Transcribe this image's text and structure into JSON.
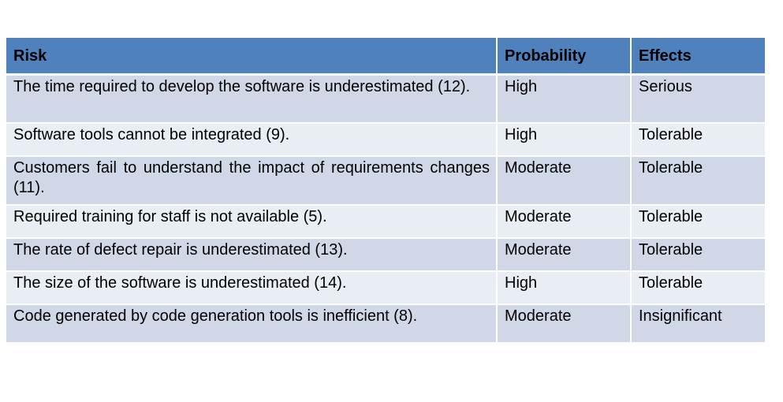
{
  "table": {
    "headers": {
      "risk": "Risk",
      "probability": "Probability",
      "effects": "Effects"
    },
    "rows": [
      {
        "risk": "The time required to develop the software is underestimated (12).",
        "probability": "High",
        "effects": "Serious"
      },
      {
        "risk": "Software tools cannot be integrated (9).",
        "probability": "High",
        "effects": "Tolerable"
      },
      {
        "risk": "Customers fail to understand the impact of requirements changes (11).",
        "probability": "Moderate",
        "effects": "Tolerable"
      },
      {
        "risk": "Required training for staff is not available (5).",
        "probability": "Moderate",
        "effects": "Tolerable"
      },
      {
        "risk": "The rate of defect repair is underestimated (13).",
        "probability": "Moderate",
        "effects": "Tolerable"
      },
      {
        "risk": "The size of the software is underestimated (14).",
        "probability": "High",
        "effects": "Tolerable"
      },
      {
        "risk": "Code generated by code generation tools is inefficient (8).",
        "probability": "Moderate",
        "effects": "Insignificant"
      }
    ]
  },
  "colors": {
    "header_bg": "#4f81bd",
    "row_odd_bg": "#d0d8e8",
    "row_even_bg": "#e9edf4"
  }
}
